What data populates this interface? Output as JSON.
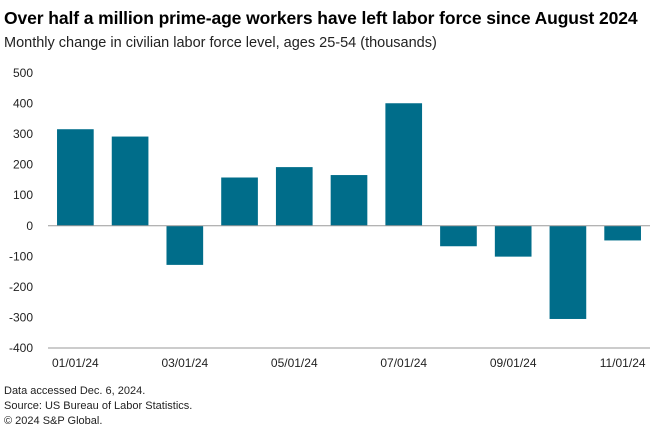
{
  "chart_data": {
    "type": "bar",
    "title": "Over half a million prime-age workers have left labor force since August 2024",
    "subtitle": "Monthly change in civilian labor force level, ages 25-54 (thousands)",
    "categories": [
      "01/01/24",
      "02/01/24",
      "03/01/24",
      "04/01/24",
      "05/01/24",
      "06/01/24",
      "07/01/24",
      "08/01/24",
      "09/01/24",
      "10/01/24",
      "11/01/24"
    ],
    "x_tick_labels": [
      "01/01/24",
      "03/01/24",
      "05/01/24",
      "07/01/24",
      "09/01/24",
      "11/01/24"
    ],
    "values": [
      316,
      292,
      -128,
      158,
      192,
      166,
      401,
      -67,
      -101,
      -305,
      -48
    ],
    "ylim": [
      -400,
      500
    ],
    "yticks": [
      500,
      400,
      300,
      200,
      100,
      0,
      -100,
      -200,
      -300,
      -400
    ],
    "bar_color": "#006d8a",
    "grid": false
  },
  "footer": {
    "line1": "Data accessed Dec. 6, 2024.",
    "line2": "Source: US Bureau of Labor Statistics.",
    "line3": "© 2024 S&P Global."
  }
}
